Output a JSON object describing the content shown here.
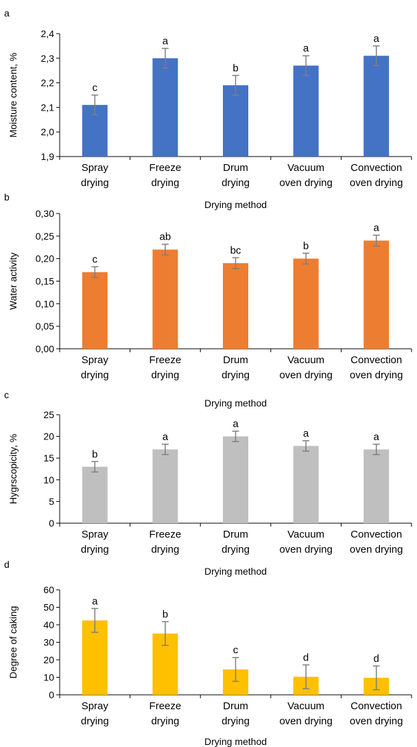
{
  "chart_data": [
    {
      "panel_label": "a",
      "type": "bar",
      "categories": [
        [
          "Spray",
          "drying"
        ],
        [
          "Freeze",
          "drying"
        ],
        [
          "Drum",
          "drying"
        ],
        [
          "Vacuum",
          "oven drying"
        ],
        [
          "Convection",
          "oven drying"
        ]
      ],
      "values": [
        2.11,
        2.3,
        2.19,
        2.27,
        2.31
      ],
      "errors": [
        0.04,
        0.04,
        0.04,
        0.04,
        0.04
      ],
      "significance_letters": [
        "c",
        "a",
        "b",
        "a",
        "a"
      ],
      "ylabel": "Moisture content, %",
      "xlabel": "Drying  method",
      "ylim": [
        1.9,
        2.4
      ],
      "yticks": [
        "1,9",
        "2,0",
        "2,1",
        "2,2",
        "2,3",
        "2,4"
      ],
      "color": "#4472C4"
    },
    {
      "panel_label": "b",
      "type": "bar",
      "categories": [
        [
          "Spray",
          "drying"
        ],
        [
          "Freeze",
          "drying"
        ],
        [
          "Drum",
          "drying"
        ],
        [
          "Vacuum",
          "oven drying"
        ],
        [
          "Convection",
          "oven drying"
        ]
      ],
      "values": [
        0.17,
        0.22,
        0.19,
        0.2,
        0.24
      ],
      "errors": [
        0.012,
        0.012,
        0.012,
        0.012,
        0.012
      ],
      "significance_letters": [
        "c",
        "ab",
        "bc",
        "b",
        "a"
      ],
      "ylabel": "Water activity",
      "xlabel": "Drying  method",
      "ylim": [
        0,
        0.3
      ],
      "yticks": [
        "0,00",
        "0,05",
        "0,10",
        "0,15",
        "0,20",
        "0,25",
        "0,30"
      ],
      "color": "#ED7D31"
    },
    {
      "panel_label": "c",
      "type": "bar",
      "categories": [
        [
          "Spray",
          "drying"
        ],
        [
          "Freeze",
          "drying"
        ],
        [
          "Drum",
          "drying"
        ],
        [
          "Vacuum",
          "oven drying"
        ],
        [
          "Convection",
          "oven drying"
        ]
      ],
      "values": [
        13.0,
        17.0,
        20.0,
        17.8,
        17.0
      ],
      "errors": [
        1.2,
        1.2,
        1.2,
        1.2,
        1.2
      ],
      "significance_letters": [
        "b",
        "a",
        "a",
        "a",
        "a"
      ],
      "ylabel": "Hygrscopicity, %",
      "xlabel": "Drying  method",
      "ylim": [
        0,
        25
      ],
      "yticks": [
        "0",
        "5",
        "10",
        "15",
        "20",
        "25"
      ],
      "color": "#BFBFBF"
    },
    {
      "panel_label": "d",
      "type": "bar",
      "categories": [
        [
          "Spray",
          "drying"
        ],
        [
          "Freeze",
          "drying"
        ],
        [
          "Drum",
          "drying"
        ],
        [
          "Vacuum",
          "oven drying"
        ],
        [
          "Convection",
          "oven drying"
        ]
      ],
      "values": [
        42.5,
        35.0,
        14.5,
        10.3,
        9.7
      ],
      "errors": [
        6.8,
        6.8,
        6.8,
        6.8,
        6.8
      ],
      "significance_letters": [
        "a",
        "b",
        "c",
        "d",
        "d"
      ],
      "ylabel": "Degree of caking",
      "xlabel": "Drying  method",
      "ylim": [
        0,
        60
      ],
      "yticks": [
        "0",
        "10",
        "20",
        "30",
        "40",
        "50",
        "60"
      ],
      "color": "#FFC000"
    }
  ]
}
